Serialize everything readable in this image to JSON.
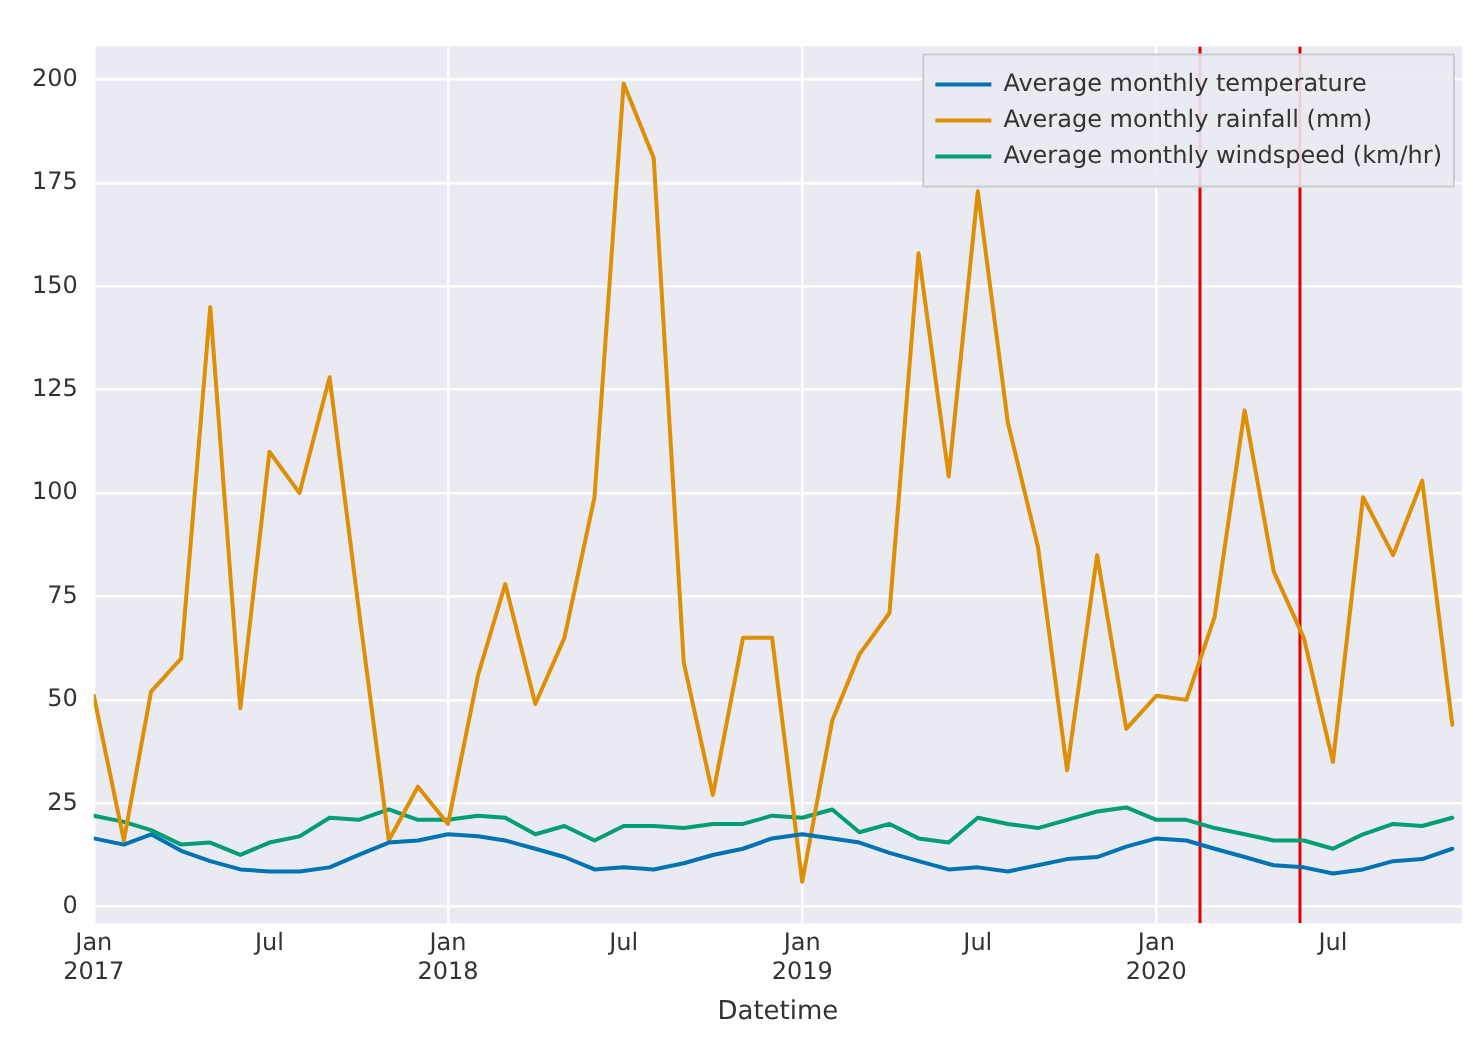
{
  "chart_data": {
    "type": "line",
    "xlabel": "Datetime",
    "x": [
      "2017-01",
      "2017-02",
      "2017-03",
      "2017-04",
      "2017-05",
      "2017-06",
      "2017-07",
      "2017-08",
      "2017-09",
      "2017-10",
      "2017-11",
      "2017-12",
      "2018-01",
      "2018-02",
      "2018-03",
      "2018-04",
      "2018-05",
      "2018-06",
      "2018-07",
      "2018-08",
      "2018-09",
      "2018-10",
      "2018-11",
      "2018-12",
      "2019-01",
      "2019-02",
      "2019-03",
      "2019-04",
      "2019-05",
      "2019-06",
      "2019-07",
      "2019-08",
      "2019-09",
      "2019-10",
      "2019-11",
      "2019-12",
      "2020-01",
      "2020-02",
      "2020-03",
      "2020-04",
      "2020-05",
      "2020-06",
      "2020-07",
      "2020-08",
      "2020-09",
      "2020-10",
      "2020-11"
    ],
    "series": [
      {
        "name": "Average monthly temperature",
        "color": "#0173b2",
        "values": [
          16.5,
          15,
          17.5,
          13.5,
          11,
          9,
          8.5,
          8.5,
          9.5,
          12.5,
          15.5,
          16,
          17.5,
          17,
          16,
          14,
          12,
          9,
          9.5,
          9,
          10.5,
          12.5,
          14,
          16.5,
          17.5,
          16.5,
          15.5,
          13,
          11,
          9,
          9.5,
          8.5,
          10,
          11.5,
          12,
          14.5,
          16.5,
          16,
          14,
          12,
          10,
          9.5,
          8,
          9,
          11,
          11.5,
          14
        ]
      },
      {
        "name": "Average monthly rainfall (mm)",
        "color": "#de8f05",
        "values": [
          51,
          16,
          52,
          60,
          145,
          48,
          110,
          100,
          128,
          72,
          16,
          29,
          20,
          56,
          78,
          49,
          65,
          99,
          199,
          181,
          59,
          27,
          65,
          65,
          6,
          45,
          61,
          71,
          158,
          104,
          173,
          117,
          87,
          33,
          85,
          43,
          51,
          50,
          70,
          120,
          81,
          65,
          35,
          99,
          85,
          103,
          44
        ]
      },
      {
        "name": "Average monthly windspeed (km/hr)",
        "color": "#029e73",
        "values": [
          22,
          20.5,
          18.5,
          15,
          15.5,
          12.5,
          15.5,
          17,
          21.5,
          21,
          23.5,
          21,
          21,
          22,
          21.5,
          17.5,
          19.5,
          16,
          19.5,
          19.5,
          19,
          20,
          20,
          22,
          21.5,
          23.5,
          18,
          20,
          16.5,
          15.5,
          21.5,
          20,
          19,
          21,
          23,
          24,
          21,
          21,
          19,
          17.5,
          16,
          16,
          14,
          17.5,
          20,
          19.5,
          21.5
        ]
      }
    ],
    "xlim": [
      "2017-01",
      "2020-11-11"
    ],
    "xticks": [
      {
        "value": "2017-01",
        "label": "Jan 2017"
      },
      {
        "value": "2017-07",
        "label": "Jul"
      },
      {
        "value": "2018-01",
        "label": "Jan 2018"
      },
      {
        "value": "2018-07",
        "label": "Jul"
      },
      {
        "value": "2019-01",
        "label": "Jan 2019"
      },
      {
        "value": "2019-07",
        "label": "Jul"
      },
      {
        "value": "2020-01",
        "label": "Jan 2020"
      },
      {
        "value": "2020-07",
        "label": "Jul"
      }
    ],
    "ylim": [
      -4,
      208
    ],
    "yticks": [
      0,
      25,
      50,
      75,
      100,
      125,
      150,
      175,
      200
    ],
    "ref_lines": [
      {
        "axis": "x",
        "value": "2020-02-15",
        "color": "#e00000"
      },
      {
        "axis": "x",
        "value": "2020-05-28",
        "color": "#e00000"
      }
    ],
    "grid": true,
    "legend": "top right",
    "marker": "none",
    "line_style": "solid"
  }
}
